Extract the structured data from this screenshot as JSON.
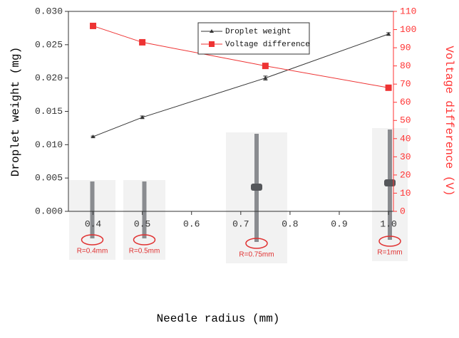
{
  "chart_data": {
    "type": "line",
    "x_label": "Needle radius (mm)",
    "y_label": "Droplet weight (mg)",
    "y2_label": "Voltage difference (V)",
    "x": [
      0.4,
      0.5,
      0.75,
      1
    ],
    "xlim": [
      0.35,
      1.01
    ],
    "xticks": [
      0.4,
      0.5,
      0.6,
      0.7,
      0.8,
      0.9,
      {
        "value": 1,
        "label": "1.0"
      }
    ],
    "ylim": [
      0,
      0.03
    ],
    "yticks": [
      {
        "value": 0,
        "label": "0.000"
      },
      {
        "value": 0.005,
        "label": "0.005"
      },
      {
        "value": 0.01,
        "label": "0.010"
      },
      {
        "value": 0.015,
        "label": "0.015"
      },
      {
        "value": 0.02,
        "label": "0.020"
      },
      {
        "value": 0.025,
        "label": "0.025"
      },
      {
        "value": 0.03,
        "label": "0.030"
      }
    ],
    "y2lim": [
      0,
      110
    ],
    "y2ticks": [
      0,
      10,
      20,
      30,
      40,
      50,
      60,
      70,
      80,
      90,
      100,
      110
    ],
    "y2_color": "#ff3333",
    "legend": "upper center",
    "series": [
      {
        "name": "Droplet weight",
        "color": "#333333",
        "marker": "triangle",
        "values": [
          0.0112,
          0.0141,
          0.02,
          0.0266
        ],
        "errors": [
          0.0001,
          0.0002,
          0.0003,
          0.0002
        ]
      },
      {
        "name": "Voltage difference",
        "color": "#ee3333",
        "marker": "square",
        "axis": "y2",
        "values": [
          102,
          93,
          80,
          68
        ]
      }
    ],
    "insets": [
      {
        "label": "R=0.4mm"
      },
      {
        "label": "R=0.5mm"
      },
      {
        "label": "R=0.75mm"
      },
      {
        "label": "R=1mm"
      }
    ]
  }
}
